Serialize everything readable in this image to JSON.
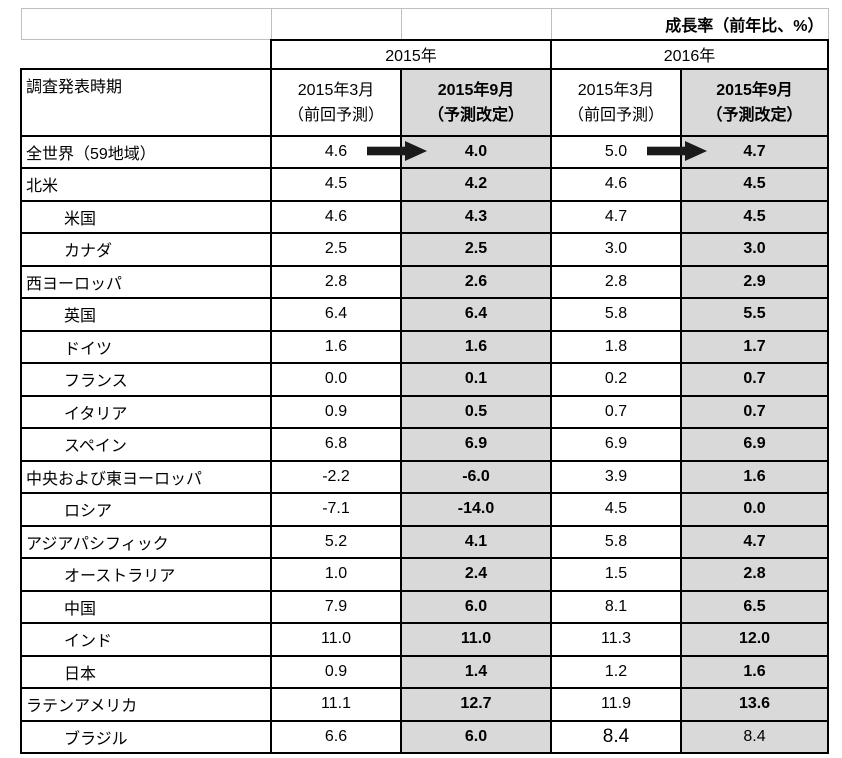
{
  "title_note": "成長率（前年比、%）",
  "colors": {
    "shade": "#d9d9d9",
    "grid_border": "#000000",
    "light_border": "#bfbfbf",
    "arrow": "#1a1a1a"
  },
  "year_groups": {
    "y2015": "2015年",
    "y2016": "2016年"
  },
  "header": {
    "survey_label": "調査発表時期",
    "prev_line1": "2015年3月",
    "prev_line2": "（前回予測）",
    "rev_line1": "2015年9月",
    "rev_line2": "（予測改定）"
  },
  "table": {
    "rows": [
      {
        "label": "全世界（59地域）",
        "indent": false,
        "arrows": true,
        "values": [
          "4.6",
          "4.0",
          "5.0",
          "4.7"
        ]
      },
      {
        "label": "北米",
        "indent": false,
        "arrows": false,
        "values": [
          "4.5",
          "4.2",
          "4.6",
          "4.5"
        ]
      },
      {
        "label": "米国",
        "indent": true,
        "arrows": false,
        "values": [
          "4.6",
          "4.3",
          "4.7",
          "4.5"
        ]
      },
      {
        "label": "カナダ",
        "indent": true,
        "arrows": false,
        "values": [
          "2.5",
          "2.5",
          "3.0",
          "3.0"
        ]
      },
      {
        "label": "西ヨーロッパ",
        "indent": false,
        "arrows": false,
        "values": [
          "2.8",
          "2.6",
          "2.8",
          "2.9"
        ]
      },
      {
        "label": "英国",
        "indent": true,
        "arrows": false,
        "values": [
          "6.4",
          "6.4",
          "5.8",
          "5.5"
        ]
      },
      {
        "label": "ドイツ",
        "indent": true,
        "arrows": false,
        "values": [
          "1.6",
          "1.6",
          "1.8",
          "1.7"
        ]
      },
      {
        "label": "フランス",
        "indent": true,
        "arrows": false,
        "values": [
          "0.0",
          "0.1",
          "0.2",
          "0.7"
        ]
      },
      {
        "label": "イタリア",
        "indent": true,
        "arrows": false,
        "values": [
          "0.9",
          "0.5",
          "0.7",
          "0.7"
        ]
      },
      {
        "label": "スペイン",
        "indent": true,
        "arrows": false,
        "values": [
          "6.8",
          "6.9",
          "6.9",
          "6.9"
        ]
      },
      {
        "label": "中央および東ヨーロッパ",
        "indent": false,
        "arrows": false,
        "values": [
          "-2.2",
          "-6.0",
          "3.9",
          "1.6"
        ]
      },
      {
        "label": "ロシア",
        "indent": true,
        "arrows": false,
        "values": [
          "-7.1",
          "-14.0",
          "4.5",
          "0.0"
        ]
      },
      {
        "label": "アジアパシフィック",
        "indent": false,
        "arrows": false,
        "values": [
          "5.2",
          "4.1",
          "5.8",
          "4.7"
        ]
      },
      {
        "label": "オーストラリア",
        "indent": true,
        "arrows": false,
        "values": [
          "1.0",
          "2.4",
          "1.5",
          "2.8"
        ]
      },
      {
        "label": "中国",
        "indent": true,
        "arrows": false,
        "values": [
          "7.9",
          "6.0",
          "8.1",
          "6.5"
        ]
      },
      {
        "label": "インド",
        "indent": true,
        "arrows": false,
        "values": [
          "11.0",
          "11.0",
          "11.3",
          "12.0"
        ]
      },
      {
        "label": "日本",
        "indent": true,
        "arrows": false,
        "values": [
          "0.9",
          "1.4",
          "1.2",
          "1.6"
        ]
      },
      {
        "label": "ラテンアメリカ",
        "indent": false,
        "arrows": false,
        "values": [
          "11.1",
          "12.7",
          "11.9",
          "13.6"
        ]
      },
      {
        "label": "ブラジル",
        "indent": true,
        "arrows": false,
        "values": [
          "6.6",
          "6.0",
          "8.4",
          "8.4"
        ],
        "col3_style": "bigplain",
        "col4_style": "plain"
      }
    ]
  }
}
